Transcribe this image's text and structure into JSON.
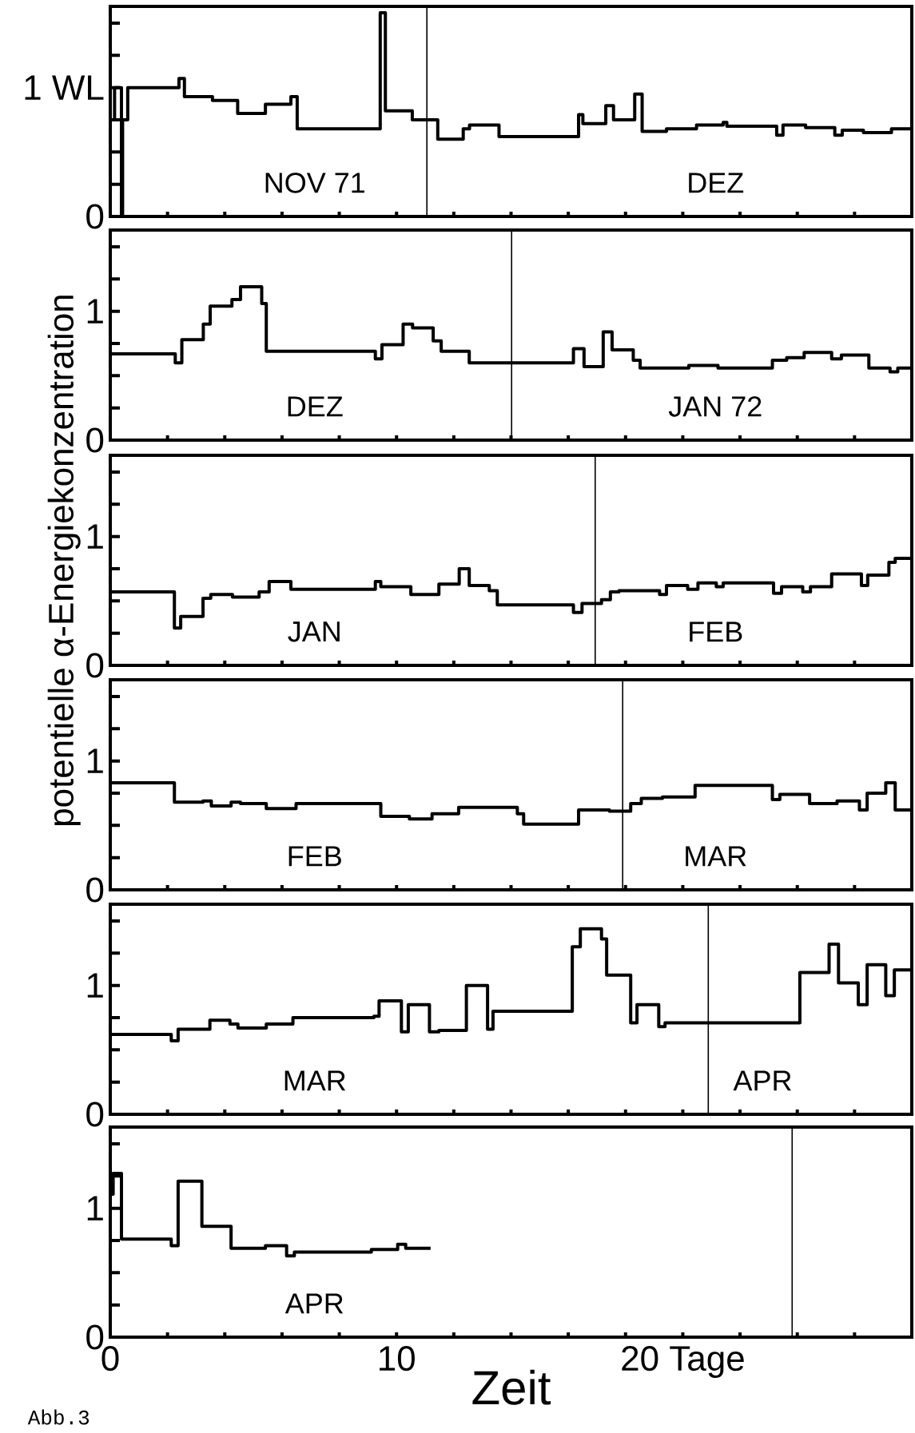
{
  "chart_data": [
    {
      "type": "step",
      "xlim": [
        0,
        28
      ],
      "ylim": [
        0,
        1.63
      ],
      "xticks": [
        2,
        4,
        6,
        8,
        10,
        12,
        14,
        16,
        18,
        20,
        22,
        24,
        26
      ],
      "yticks": [
        0,
        {
          "value": 0.25,
          "label": null
        },
        {
          "value": 0.5,
          "label": null
        },
        {
          "value": 0.75,
          "label": null
        },
        {
          "value": 1,
          "label": "1 WL"
        },
        {
          "value": 1.25,
          "label": null
        },
        {
          "value": 1.5,
          "label": null
        }
      ],
      "tick_labels": "y",
      "series": [
        {
          "color": "#000000",
          "x": [
            0,
            0.15,
            0.39,
            0.43,
            0.61,
            2.4,
            2.59,
            3.57,
            4.45,
            5.42,
            6.31,
            6.53,
            9.43,
            9.61,
            10.55,
            11.44,
            12.33,
            12.55,
            13.58,
            16.36,
            16.51,
            17.31,
            17.58,
            18.32,
            18.58,
            19.43,
            20.48,
            21.41,
            21.54,
            23.28,
            23.5,
            24.29,
            25.31,
            25.57,
            26.31,
            27.29,
            28
          ],
          "values": [
            0.75,
            1.0,
            0,
            0.75,
            1.0,
            1.07,
            0.93,
            0.9,
            0.8,
            0.87,
            0.93,
            0.68,
            1.58,
            0.82,
            0.75,
            0.6,
            0.68,
            0.71,
            0.62,
            0.79,
            0.72,
            0.86,
            0.75,
            0.95,
            0.66,
            0.68,
            0.71,
            0.73,
            0.7,
            0.63,
            0.71,
            0.69,
            0.63,
            0.67,
            0.65,
            0.68,
            0.68
          ]
        }
      ],
      "ref_lines": [
        {
          "axis": "x",
          "value": 11.06
        }
      ],
      "annotations": [
        "NOV 71",
        "DEZ"
      ]
    },
    {
      "type": "step",
      "xlim": [
        0,
        28
      ],
      "ylim": [
        0,
        1.63
      ],
      "xticks": [
        2,
        4,
        6,
        8,
        10,
        12,
        14,
        16,
        18,
        20,
        22,
        24,
        26
      ],
      "yticks": [
        0,
        {
          "value": 0.25,
          "label": null
        },
        {
          "value": 0.5,
          "label": null
        },
        {
          "value": 0.75,
          "label": null
        },
        1,
        {
          "value": 1.25,
          "label": null
        },
        {
          "value": 1.5,
          "label": null
        }
      ],
      "tick_labels": "y",
      "series": [
        {
          "color": "#000000",
          "x": [
            0,
            2.27,
            2.5,
            3.25,
            3.49,
            4.25,
            4.55,
            5.29,
            5.45,
            9.26,
            9.49,
            10.23,
            10.56,
            11.28,
            11.56,
            12.54,
            16.18,
            16.55,
            17.22,
            17.53,
            18.27,
            18.51,
            20.21,
            21.23,
            23.13,
            23.63,
            24.24,
            25.2,
            25.54,
            26.5,
            27.24,
            27.51,
            28
          ],
          "values": [
            0.67,
            0.6,
            0.78,
            0.9,
            1.04,
            1.09,
            1.19,
            1.06,
            0.69,
            0.63,
            0.74,
            0.9,
            0.87,
            0.77,
            0.69,
            0.6,
            0.71,
            0.57,
            0.84,
            0.7,
            0.62,
            0.56,
            0.58,
            0.56,
            0.62,
            0.64,
            0.68,
            0.63,
            0.66,
            0.56,
            0.53,
            0.56,
            0.56
          ]
        }
      ],
      "ref_lines": [
        {
          "axis": "x",
          "value": 14.02
        }
      ],
      "annotations": [
        "DEZ",
        "JAN 72"
      ]
    },
    {
      "type": "step",
      "xlim": [
        0,
        28
      ],
      "ylim": [
        0,
        1.63
      ],
      "xticks": [
        2,
        4,
        6,
        8,
        10,
        12,
        14,
        16,
        18,
        20,
        22,
        24,
        26
      ],
      "yticks": [
        0,
        {
          "value": 0.25,
          "label": null
        },
        {
          "value": 0.5,
          "label": null
        },
        {
          "value": 0.75,
          "label": null
        },
        1,
        {
          "value": 1.25,
          "label": null
        },
        {
          "value": 1.5,
          "label": null
        }
      ],
      "tick_labels": "y",
      "ylabel": "potentielle α-Energiekonzentration",
      "series": [
        {
          "color": "#000000",
          "x": [
            0,
            2.24,
            2.46,
            3.24,
            3.51,
            4.27,
            5.2,
            5.55,
            6.31,
            9.26,
            9.45,
            10.5,
            11.48,
            12.19,
            12.54,
            13.24,
            13.52,
            16.18,
            16.48,
            17.16,
            17.47,
            17.77,
            19.19,
            19.43,
            20.17,
            20.53,
            21.17,
            21.41,
            23.17,
            23.45,
            24.19,
            24.46,
            25.2,
            26.24,
            26.46,
            27.2,
            27.42,
            28
          ],
          "values": [
            0.57,
            0.29,
            0.38,
            0.52,
            0.55,
            0.53,
            0.57,
            0.65,
            0.59,
            0.65,
            0.61,
            0.55,
            0.63,
            0.75,
            0.62,
            0.58,
            0.47,
            0.41,
            0.48,
            0.51,
            0.57,
            0.58,
            0.55,
            0.62,
            0.59,
            0.64,
            0.61,
            0.64,
            0.56,
            0.61,
            0.57,
            0.61,
            0.71,
            0.62,
            0.7,
            0.8,
            0.83,
            0.83
          ]
        }
      ],
      "ref_lines": [
        {
          "axis": "x",
          "value": 16.94
        }
      ],
      "annotations": [
        "JAN",
        "FEB"
      ]
    },
    {
      "type": "step",
      "xlim": [
        0,
        28
      ],
      "ylim": [
        0,
        1.63
      ],
      "xticks": [
        2,
        4,
        6,
        8,
        10,
        12,
        14,
        16,
        18,
        20,
        22,
        24,
        26
      ],
      "yticks": [
        0,
        {
          "value": 0.25,
          "label": null
        },
        {
          "value": 0.5,
          "label": null
        },
        {
          "value": 0.75,
          "label": null
        },
        1,
        {
          "value": 1.25,
          "label": null
        },
        {
          "value": 1.5,
          "label": null
        }
      ],
      "tick_labels": "y",
      "series": [
        {
          "color": "#000000",
          "x": [
            0,
            2.24,
            3.24,
            3.53,
            4.22,
            4.55,
            5.45,
            6.49,
            9.45,
            10.45,
            11.24,
            12.17,
            14.22,
            14.44,
            16.36,
            17.44,
            18.18,
            18.55,
            19.29,
            20.43,
            23.13,
            23.39,
            24.43,
            25.39,
            26.17,
            26.44,
            27.09,
            27.42,
            28
          ],
          "values": [
            0.83,
            0.68,
            0.69,
            0.65,
            0.68,
            0.67,
            0.63,
            0.67,
            0.57,
            0.55,
            0.59,
            0.64,
            0.59,
            0.51,
            0.62,
            0.61,
            0.67,
            0.71,
            0.72,
            0.81,
            0.7,
            0.74,
            0.67,
            0.69,
            0.62,
            0.75,
            0.83,
            0.62,
            0.62
          ]
        }
      ],
      "ref_lines": [
        {
          "axis": "x",
          "value": 17.9
        }
      ],
      "annotations": [
        "FEB",
        "MAR"
      ]
    },
    {
      "type": "step",
      "xlim": [
        0,
        28
      ],
      "ylim": [
        0,
        1.63
      ],
      "xticks": [
        2,
        4,
        6,
        8,
        10,
        12,
        14,
        16,
        18,
        20,
        22,
        24,
        26
      ],
      "yticks": [
        0,
        {
          "value": 0.25,
          "label": null
        },
        {
          "value": 0.5,
          "label": null
        },
        {
          "value": 0.75,
          "label": null
        },
        1,
        {
          "value": 1.25,
          "label": null
        },
        {
          "value": 1.5,
          "label": null
        }
      ],
      "tick_labels": "y",
      "series": [
        {
          "color": "#000000",
          "x": [
            0,
            2.13,
            2.37,
            3.48,
            4.18,
            4.46,
            5.45,
            6.38,
            9.21,
            9.39,
            10.17,
            10.41,
            11.15,
            11.48,
            12.44,
            13.18,
            13.37,
            16.14,
            16.42,
            17.16,
            17.34,
            18.18,
            18.4,
            19.16,
            19.38,
            24.09,
            25.11,
            25.44,
            26.13,
            26.44,
            27.09,
            27.39,
            28
          ],
          "values": [
            0.62,
            0.57,
            0.66,
            0.73,
            0.7,
            0.67,
            0.7,
            0.75,
            0.76,
            0.88,
            0.64,
            0.85,
            0.64,
            0.65,
            1.0,
            0.66,
            0.8,
            1.3,
            1.44,
            1.36,
            1.08,
            0.71,
            0.85,
            0.68,
            0.71,
            1.1,
            1.32,
            1.02,
            0.85,
            1.16,
            0.92,
            1.12,
            1.12
          ]
        }
      ],
      "ref_lines": [
        {
          "axis": "x",
          "value": 20.89
        }
      ],
      "annotations": [
        "MAR",
        "APR"
      ]
    },
    {
      "type": "step",
      "xlim": [
        0,
        28
      ],
      "ylim": [
        0,
        1.63
      ],
      "xticks": [
        0,
        {
          "value": 2,
          "label": null
        },
        {
          "value": 4,
          "label": null
        },
        {
          "value": 6,
          "label": null
        },
        {
          "value": 8,
          "label": null
        },
        10,
        {
          "value": 12,
          "label": null
        },
        {
          "value": 14,
          "label": null
        },
        {
          "value": 16,
          "label": null
        },
        {
          "value": 18,
          "label": null
        },
        {
          "value": 20,
          "label": "20 Tage"
        },
        {
          "value": 22,
          "label": null
        },
        {
          "value": 24,
          "label": null
        },
        {
          "value": 26,
          "label": null
        }
      ],
      "yticks": [
        0,
        {
          "value": 0.25,
          "label": null
        },
        {
          "value": 0.5,
          "label": null
        },
        {
          "value": 0.75,
          "label": null
        },
        1,
        {
          "value": 1.25,
          "label": null
        },
        {
          "value": 1.5,
          "label": null
        }
      ],
      "xlabel": "Zeit",
      "series": [
        {
          "color": "#000000",
          "x": [
            0,
            0.1,
            0.39,
            2.13,
            2.37,
            3.2,
            4.22,
            5.42,
            6.16,
            6.43,
            9.12,
            10.04,
            10.32,
            11.19
          ],
          "values": [
            1.11,
            1.27,
            0.76,
            0.71,
            1.21,
            0.86,
            0.69,
            0.71,
            0.63,
            0.66,
            0.68,
            0.72,
            0.69,
            0.69
          ]
        }
      ],
      "ref_lines": [
        {
          "axis": "x",
          "value": 23.82
        }
      ],
      "annotations": [
        "APR",
        "Abb.3"
      ]
    }
  ]
}
